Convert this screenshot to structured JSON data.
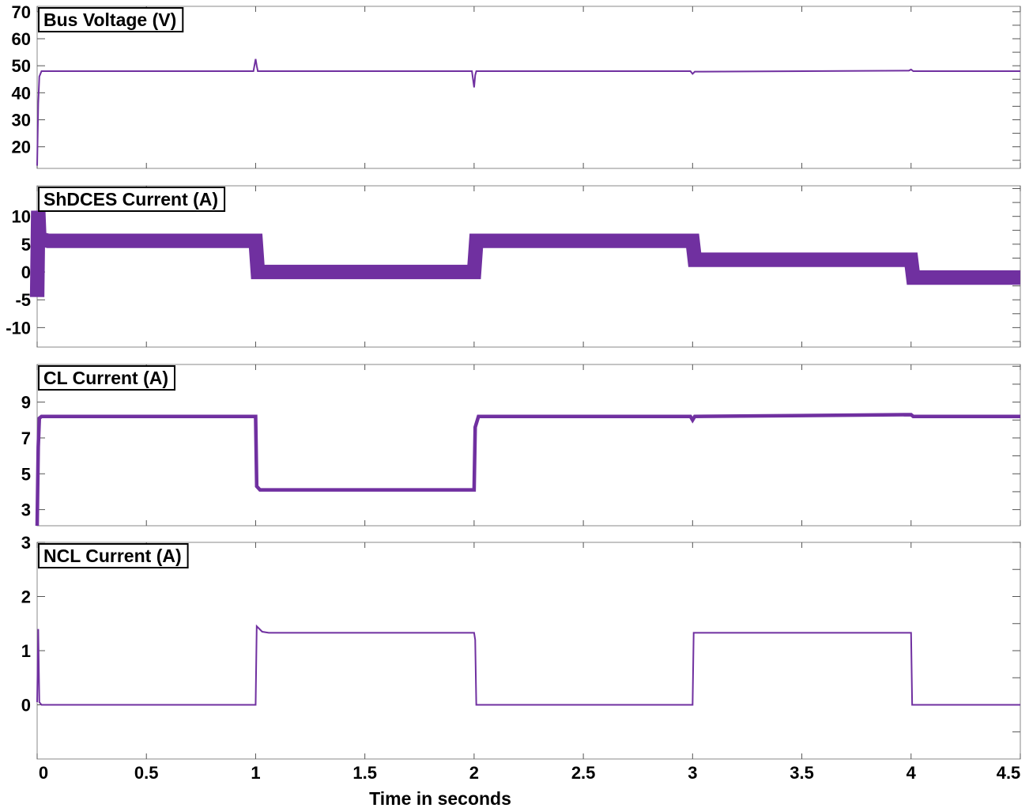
{
  "chart_data": [
    {
      "type": "line",
      "title": "Bus Voltage (V)",
      "xlim": [
        0,
        4.5
      ],
      "ylim": [
        12,
        72
      ],
      "yticks": [
        20,
        30,
        40,
        50,
        60,
        70
      ],
      "grid": false,
      "color": "#7030A0",
      "series": [
        {
          "band": 0.4,
          "points": [
            [
              0,
              13
            ],
            [
              0.005,
              36
            ],
            [
              0.01,
              46
            ],
            [
              0.02,
              48
            ],
            [
              0.03,
              48
            ],
            [
              0.05,
              48
            ],
            [
              0.99,
              48
            ],
            [
              1.0,
              52.5
            ],
            [
              1.005,
              50
            ],
            [
              1.01,
              48
            ],
            [
              1.99,
              48
            ],
            [
              2.0,
              42
            ],
            [
              2.005,
              46.5
            ],
            [
              2.01,
              48
            ],
            [
              2.99,
              48
            ],
            [
              3.0,
              47
            ],
            [
              3.01,
              47.8
            ],
            [
              3.99,
              48.2
            ],
            [
              4.0,
              48.6
            ],
            [
              4.01,
              48
            ],
            [
              4.5,
              48
            ]
          ]
        }
      ]
    },
    {
      "type": "line",
      "title": "ShDCES Current (A)",
      "xlim": [
        0,
        4.5
      ],
      "ylim": [
        -13.5,
        15.5
      ],
      "yticks": [
        -10,
        -5,
        0,
        5,
        10
      ],
      "grid": false,
      "color": "#7030A0",
      "series": [
        {
          "band": 2.6,
          "points": [
            [
              0,
              -4.5
            ],
            [
              0.005,
              11
            ],
            [
              0.01,
              6
            ],
            [
              0.05,
              5.6
            ],
            [
              0.99,
              5.6
            ],
            [
              1.0,
              5.6
            ],
            [
              1.01,
              0
            ],
            [
              1.99,
              0
            ],
            [
              2.0,
              0
            ],
            [
              2.01,
              5.6
            ],
            [
              2.99,
              5.6
            ],
            [
              3.0,
              5.6
            ],
            [
              3.01,
              2.2
            ],
            [
              3.99,
              2.2
            ],
            [
              4.0,
              2.2
            ],
            [
              4.01,
              -1
            ],
            [
              4.5,
              -1
            ]
          ]
        }
      ]
    },
    {
      "type": "line",
      "title": "CL Current (A)",
      "xlim": [
        0,
        4.5
      ],
      "ylim": [
        2.1,
        11.1
      ],
      "yticks": [
        3,
        5,
        7,
        9
      ],
      "grid": false,
      "color": "#7030A0",
      "series": [
        {
          "band": 0.2,
          "points": [
            [
              0,
              2.1
            ],
            [
              0.005,
              6.5
            ],
            [
              0.01,
              8.1
            ],
            [
              0.02,
              8.2
            ],
            [
              0.99,
              8.2
            ],
            [
              1.0,
              8.2
            ],
            [
              1.005,
              4.3
            ],
            [
              1.02,
              4.1
            ],
            [
              1.99,
              4.1
            ],
            [
              2.0,
              4.1
            ],
            [
              2.005,
              7.6
            ],
            [
              2.02,
              8.2
            ],
            [
              2.99,
              8.2
            ],
            [
              3.0,
              8.0
            ],
            [
              3.01,
              8.2
            ],
            [
              4.0,
              8.3
            ],
            [
              4.01,
              8.2
            ],
            [
              4.5,
              8.2
            ]
          ]
        }
      ]
    },
    {
      "type": "line",
      "title": "NCL Current (A)",
      "xlim": [
        0,
        4.5
      ],
      "ylim": [
        -1,
        3
      ],
      "yticks": [
        0,
        1,
        2,
        3
      ],
      "grid": false,
      "color": "#7030A0",
      "series": [
        {
          "band": 0.02,
          "points": [
            [
              0,
              0.05
            ],
            [
              0.005,
              1.4
            ],
            [
              0.01,
              0.05
            ],
            [
              0.02,
              0
            ],
            [
              1.0,
              0
            ],
            [
              1.005,
              1.45
            ],
            [
              1.03,
              1.35
            ],
            [
              1.06,
              1.33
            ],
            [
              2.0,
              1.33
            ],
            [
              2.005,
              1.2
            ],
            [
              2.01,
              0
            ],
            [
              3.0,
              0
            ],
            [
              3.005,
              1.33
            ],
            [
              4.0,
              1.33
            ],
            [
              4.005,
              0
            ],
            [
              4.5,
              0
            ]
          ]
        }
      ]
    }
  ],
  "x_axis": {
    "xlabel": "Time in seconds",
    "ticks": [
      0,
      0.5,
      1,
      1.5,
      2,
      2.5,
      3,
      3.5,
      4,
      4.5
    ],
    "tick_labels": [
      "0",
      "0.5",
      "1",
      "1.5",
      "2",
      "2.5",
      "3",
      "3.5",
      "4",
      "4.5"
    ]
  }
}
